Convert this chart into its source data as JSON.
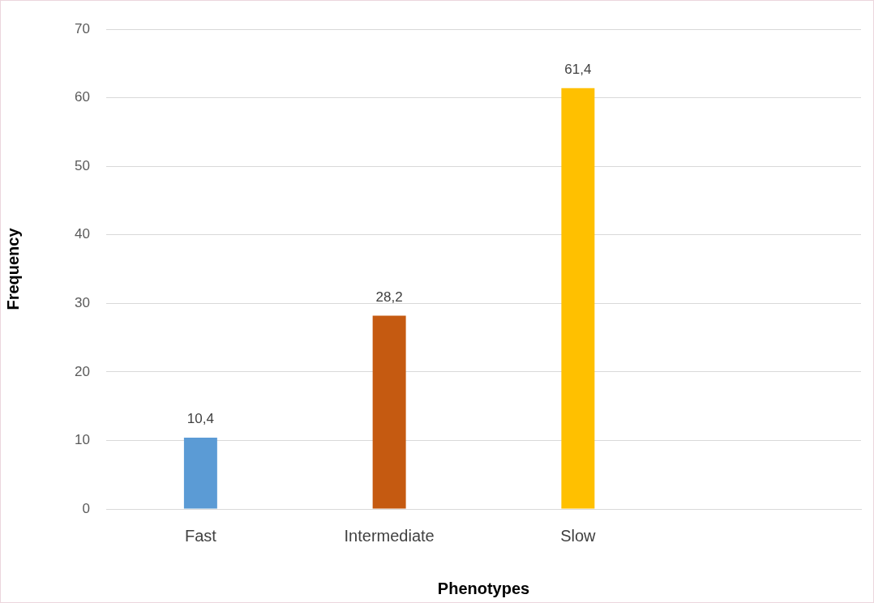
{
  "chart_data": {
    "type": "bar",
    "xlabel": "Phenotypes",
    "ylabel": "Frequency",
    "categories": [
      "Fast",
      "Intermediate",
      "Slow",
      null
    ],
    "values": [
      10.4,
      28.2,
      61.4,
      null
    ],
    "value_labels": [
      "10,4",
      "28,2",
      "61,4",
      null
    ],
    "colors": [
      "#5b9bd5",
      "#c55a11",
      "#ffc000",
      "#a5a5a5"
    ],
    "ylim": [
      0,
      70
    ],
    "yticks": [
      0,
      10,
      20,
      30,
      40,
      50,
      60,
      70
    ],
    "grid": "y",
    "legend": false
  }
}
